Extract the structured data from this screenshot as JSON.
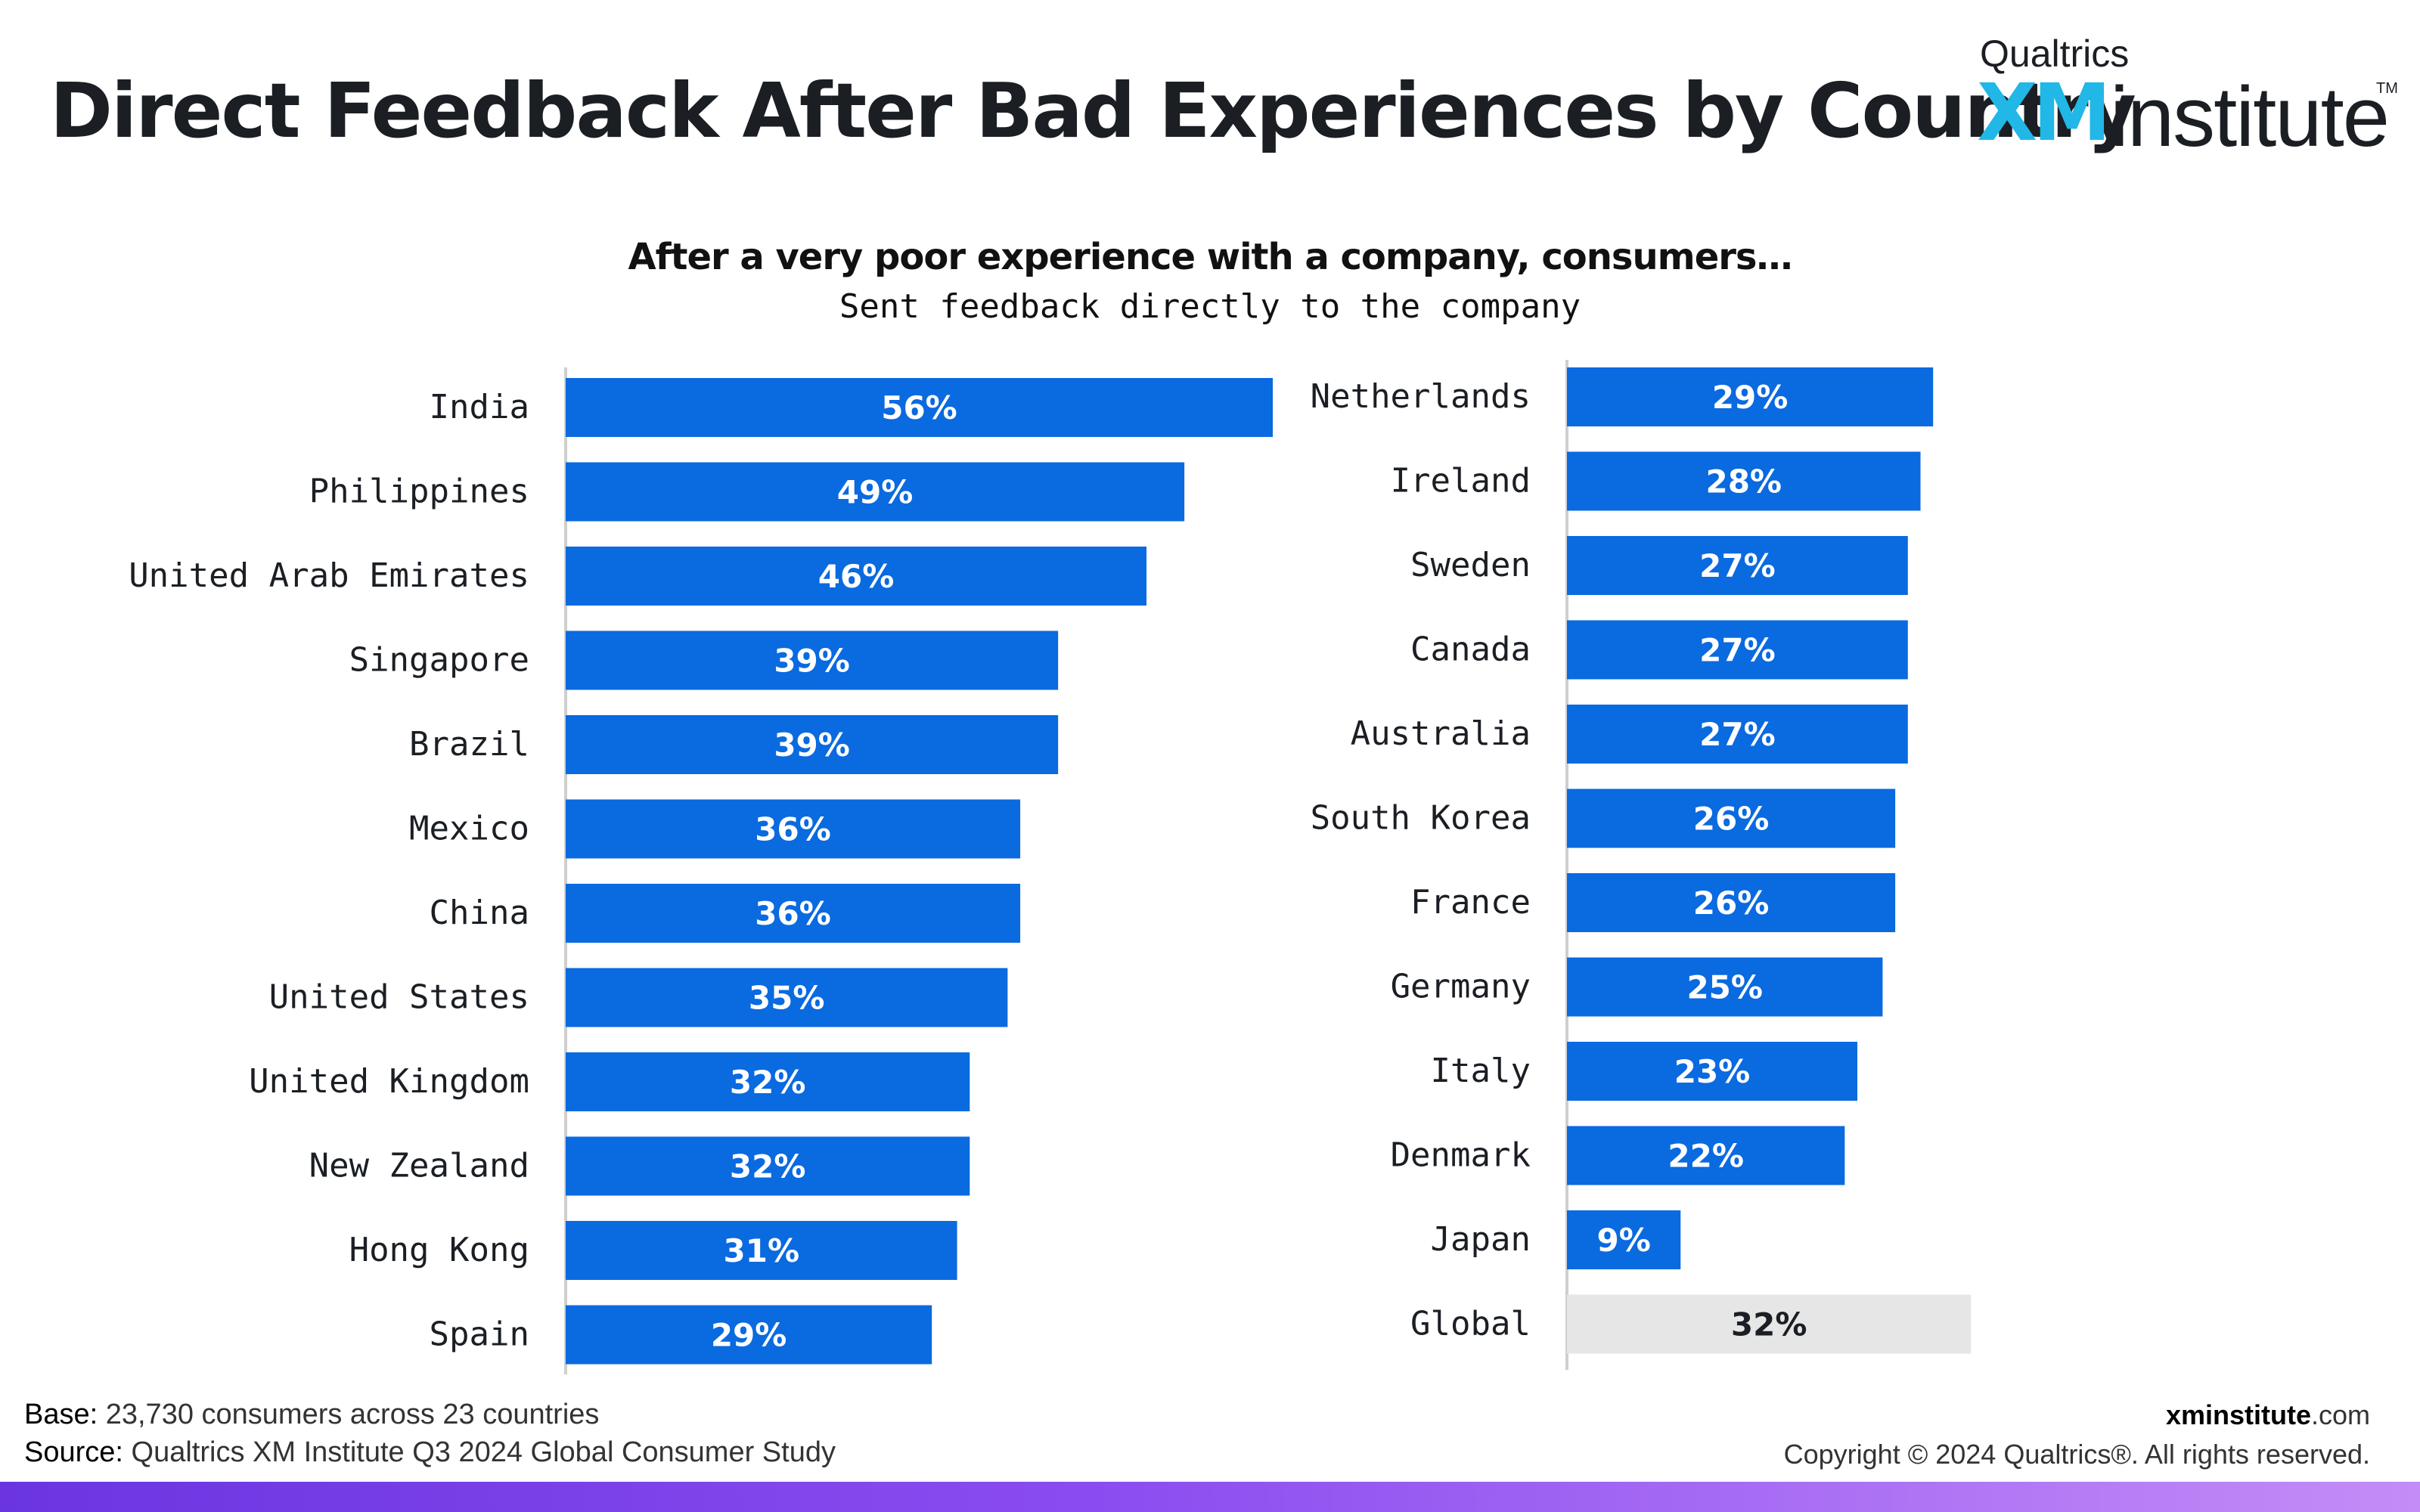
{
  "header": {
    "title": "Direct Feedback After Bad Experiences by Country"
  },
  "logo": {
    "company": "Qualtrics",
    "xm": "XM",
    "institute": "institute",
    "tm": "TM"
  },
  "footer": {
    "base_label": "Base:",
    "base_text": "23,730 consumers across 23 countries",
    "source_label": "Source:",
    "source_text": "Qualtrics XM Institute Q3 2024 Global Consumer Study",
    "site_bold": "xminstitute",
    "site_tail": ".com",
    "copyright": "Copyright © 2024 Qualtrics®. All rights reserved."
  },
  "colors": {
    "bar": "#0a6ae0",
    "global_bar": "#e6e6e6",
    "xm_accent": "#21b7e6"
  },
  "chart_data": {
    "type": "bar",
    "orientation": "horizontal",
    "title": "After a very poor experience with a company, consumers…",
    "subtitle": "Sent feedback directly to the company",
    "unit": "%",
    "xlim": [
      0,
      56
    ],
    "grid": false,
    "legend": "none",
    "panels": [
      {
        "categories": [
          "India",
          "Philippines",
          "United Arab Emirates",
          "Singapore",
          "Brazil",
          "Mexico",
          "China",
          "United States",
          "United Kingdom",
          "New Zealand",
          "Hong Kong",
          "Spain"
        ],
        "values": [
          56,
          49,
          46,
          39,
          39,
          36,
          36,
          35,
          32,
          32,
          31,
          29
        ],
        "labels": [
          "56%",
          "49%",
          "46%",
          "39%",
          "39%",
          "36%",
          "36%",
          "35%",
          "32%",
          "32%",
          "31%",
          "29%"
        ]
      },
      {
        "categories": [
          "Netherlands",
          "Ireland",
          "Sweden",
          "Canada",
          "Australia",
          "South Korea",
          "France",
          "Germany",
          "Italy",
          "Denmark",
          "Japan",
          "Global"
        ],
        "values": [
          29,
          28,
          27,
          27,
          27,
          26,
          26,
          25,
          23,
          22,
          9,
          32
        ],
        "labels": [
          "29%",
          "28%",
          "27%",
          "27%",
          "27%",
          "26%",
          "26%",
          "25%",
          "23%",
          "22%",
          "9%",
          "32%"
        ],
        "highlight": "Global"
      }
    ]
  }
}
